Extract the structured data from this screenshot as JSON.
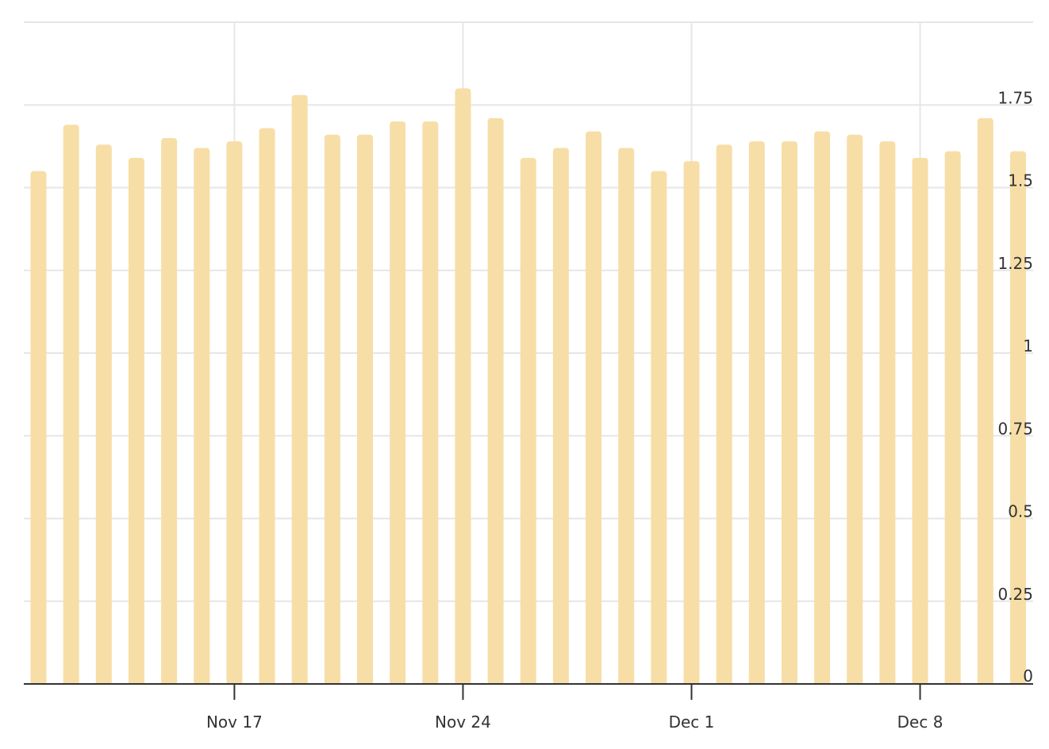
{
  "chart_data": {
    "type": "bar",
    "title": "",
    "xlabel": "",
    "ylabel": "",
    "x": [
      "2024-11-11",
      "2024-11-12",
      "2024-11-13",
      "2024-11-14",
      "2024-11-15",
      "2024-11-16",
      "2024-11-17",
      "2024-11-18",
      "2024-11-19",
      "2024-11-20",
      "2024-11-21",
      "2024-11-22",
      "2024-11-23",
      "2024-11-24",
      "2024-11-25",
      "2024-11-26",
      "2024-11-27",
      "2024-11-28",
      "2024-11-29",
      "2024-11-30",
      "2024-12-01",
      "2024-12-02",
      "2024-12-03",
      "2024-12-04",
      "2024-12-05",
      "2024-12-06",
      "2024-12-07",
      "2024-12-08",
      "2024-12-09",
      "2024-12-10",
      "2024-12-11"
    ],
    "values": [
      1.55,
      1.69,
      1.63,
      1.59,
      1.65,
      1.62,
      1.64,
      1.68,
      1.78,
      1.66,
      1.66,
      1.7,
      1.7,
      1.8,
      1.71,
      1.59,
      1.62,
      1.67,
      1.62,
      1.55,
      1.58,
      1.63,
      1.64,
      1.64,
      1.67,
      1.66,
      1.64,
      1.59,
      1.61,
      1.71,
      1.61
    ],
    "ylim": [
      0,
      2
    ],
    "y_ticks": [
      "0",
      "0.25",
      "0.5",
      "0.75",
      "1",
      "1.25",
      "1.5",
      "1.75"
    ],
    "x_ticks": [
      {
        "index": 6,
        "label": "Nov 17"
      },
      {
        "index": 13,
        "label": "Nov 24"
      },
      {
        "index": 20,
        "label": "Dec 1"
      },
      {
        "index": 27,
        "label": "Dec 8"
      }
    ],
    "y_axis_position": "right",
    "grid": true,
    "bar_color": "#f7dea7",
    "grid_color": "#e6e6e6",
    "axis_color": "#333333"
  }
}
